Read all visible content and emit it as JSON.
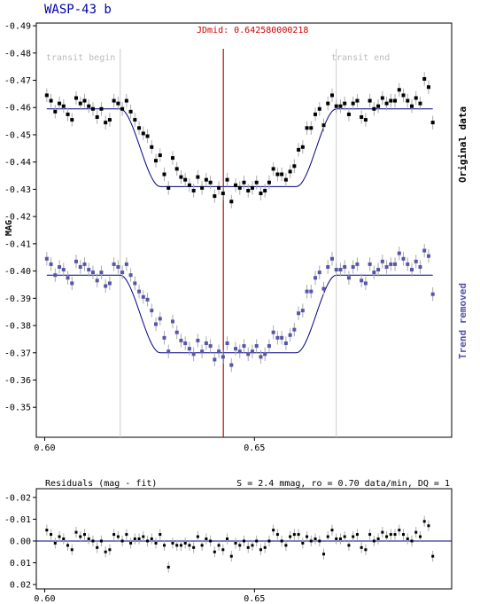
{
  "title": "WASP-43 b",
  "jdmid_label": "JDmid: 0.642580000218",
  "transit_begin_label": "transit begin",
  "transit_end_label": "transit end",
  "ylabel": "MAG",
  "right_label_original": "Original data",
  "right_label_trend": "Trend removed",
  "residuals_title": "Residuals (mag - fit)",
  "residuals_stats": "S = 2.4 mmag, ro = 0.70 data/min, DQ = 1",
  "colors": {
    "original": "#000000",
    "trend": "#5555aa",
    "fit": "#000080",
    "jdmid": "#cc0000",
    "guide": "#cccccc",
    "errorbar": "#aaaaaa",
    "zero_line": "#000080"
  },
  "chart_data": [
    {
      "type": "scatter",
      "name": "light-curve",
      "xlim": [
        0.598,
        0.697
      ],
      "ylim": [
        -0.491,
        -0.339
      ],
      "y_reversed": true,
      "grid": false,
      "x_ticks": [
        "0.60",
        "0.65"
      ],
      "x_tick_values": [
        0.6,
        0.65
      ],
      "y_ticks": [
        "-0.49",
        "-0.48",
        "-0.47",
        "-0.46",
        "-0.45",
        "-0.44",
        "-0.43",
        "-0.42",
        "-0.41",
        "-0.40",
        "-0.39",
        "-0.38",
        "-0.37",
        "-0.36",
        "-0.35"
      ],
      "y_tick_values": [
        -0.49,
        -0.48,
        -0.47,
        -0.46,
        -0.45,
        -0.44,
        -0.43,
        -0.42,
        -0.41,
        -0.4,
        -0.39,
        -0.38,
        -0.37,
        -0.36,
        -0.35
      ],
      "transit_begin": 0.618,
      "transit_end": 0.6695,
      "jdmid": 0.64258,
      "depth": 0.0285,
      "errorbar": 0.0025,
      "series": [
        {
          "key": "original",
          "baseline": -0.4595,
          "x": [
            0.6005,
            0.6015,
            0.6025,
            0.6035,
            0.6045,
            0.6055,
            0.6065,
            0.6075,
            0.6085,
            0.6095,
            0.6105,
            0.6115,
            0.6125,
            0.6135,
            0.6145,
            0.6155,
            0.6165,
            0.6175,
            0.6185,
            0.6195,
            0.6205,
            0.6215,
            0.6225,
            0.6235,
            0.6245,
            0.6255,
            0.6265,
            0.6275,
            0.6285,
            0.6295,
            0.6305,
            0.6315,
            0.6325,
            0.6335,
            0.6345,
            0.6355,
            0.6365,
            0.6375,
            0.6385,
            0.6395,
            0.6405,
            0.6415,
            0.6425,
            0.6435,
            0.6445,
            0.6455,
            0.6465,
            0.6475,
            0.6485,
            0.6495,
            0.6505,
            0.6515,
            0.6525,
            0.6535,
            0.6545,
            0.6555,
            0.6565,
            0.6575,
            0.6585,
            0.6595,
            0.6605,
            0.6615,
            0.6625,
            0.6635,
            0.6645,
            0.6655,
            0.6665,
            0.6675,
            0.6685,
            0.6695,
            0.6705,
            0.6715,
            0.6725,
            0.6735,
            0.6745,
            0.6755,
            0.6765,
            0.6775,
            0.6785,
            0.6795,
            0.6805,
            0.6815,
            0.6825,
            0.6835,
            0.6845,
            0.6855,
            0.6865,
            0.6875,
            0.6885,
            0.6895,
            0.6905,
            0.6915,
            0.6925
          ],
          "y": [
            -0.4645,
            -0.4625,
            -0.4585,
            -0.4615,
            -0.4605,
            -0.4575,
            -0.4555,
            -0.4635,
            -0.4615,
            -0.4625,
            -0.4605,
            -0.4595,
            -0.4565,
            -0.4595,
            -0.4545,
            -0.4555,
            -0.4625,
            -0.4615,
            -0.4595,
            -0.4625,
            -0.4585,
            -0.4555,
            -0.4525,
            -0.4505,
            -0.4495,
            -0.4455,
            -0.4405,
            -0.4425,
            -0.4355,
            -0.4305,
            -0.4415,
            -0.4375,
            -0.4345,
            -0.4335,
            -0.4315,
            -0.4295,
            -0.4345,
            -0.4305,
            -0.4335,
            -0.4325,
            -0.4275,
            -0.4305,
            -0.4285,
            -0.4335,
            -0.4255,
            -0.4315,
            -0.4305,
            -0.4325,
            -0.4295,
            -0.4305,
            -0.4325,
            -0.4285,
            -0.4295,
            -0.4325,
            -0.4375,
            -0.4355,
            -0.4355,
            -0.4335,
            -0.4365,
            -0.4385,
            -0.4445,
            -0.4455,
            -0.4525,
            -0.4525,
            -0.4575,
            -0.4595,
            -0.4535,
            -0.4615,
            -0.4645,
            -0.4605,
            -0.4605,
            -0.4615,
            -0.4575,
            -0.4615,
            -0.4625,
            -0.4565,
            -0.4555,
            -0.4625,
            -0.4595,
            -0.4605,
            -0.4635,
            -0.4615,
            -0.4625,
            -0.4625,
            -0.4665,
            -0.4645,
            -0.4625,
            -0.4605,
            -0.4635,
            -0.4615,
            -0.4705,
            -0.4675,
            -0.4545
          ]
        },
        {
          "key": "trend",
          "baseline": -0.3985,
          "x": [
            0.6005,
            0.6015,
            0.6025,
            0.6035,
            0.6045,
            0.6055,
            0.6065,
            0.6075,
            0.6085,
            0.6095,
            0.6105,
            0.6115,
            0.6125,
            0.6135,
            0.6145,
            0.6155,
            0.6165,
            0.6175,
            0.6185,
            0.6195,
            0.6205,
            0.6215,
            0.6225,
            0.6235,
            0.6245,
            0.6255,
            0.6265,
            0.6275,
            0.6285,
            0.6295,
            0.6305,
            0.6315,
            0.6325,
            0.6335,
            0.6345,
            0.6355,
            0.6365,
            0.6375,
            0.6385,
            0.6395,
            0.6405,
            0.6415,
            0.6425,
            0.6435,
            0.6445,
            0.6455,
            0.6465,
            0.6475,
            0.6485,
            0.6495,
            0.6505,
            0.6515,
            0.6525,
            0.6535,
            0.6545,
            0.6555,
            0.6565,
            0.6575,
            0.6585,
            0.6595,
            0.6605,
            0.6615,
            0.6625,
            0.6635,
            0.6645,
            0.6655,
            0.6665,
            0.6675,
            0.6685,
            0.6695,
            0.6705,
            0.6715,
            0.6725,
            0.6735,
            0.6745,
            0.6755,
            0.6765,
            0.6775,
            0.6785,
            0.6795,
            0.6805,
            0.6815,
            0.6825,
            0.6835,
            0.6845,
            0.6855,
            0.6865,
            0.6875,
            0.6885,
            0.6895,
            0.6905,
            0.6915,
            0.6925
          ],
          "y": [
            -0.4045,
            -0.4025,
            -0.3985,
            -0.4015,
            -0.4005,
            -0.3975,
            -0.3955,
            -0.4035,
            -0.4015,
            -0.4025,
            -0.4005,
            -0.3995,
            -0.3965,
            -0.3995,
            -0.3945,
            -0.3955,
            -0.4025,
            -0.4015,
            -0.3995,
            -0.4025,
            -0.3985,
            -0.3955,
            -0.3925,
            -0.3905,
            -0.3895,
            -0.3855,
            -0.3805,
            -0.3825,
            -0.3755,
            -0.3705,
            -0.3815,
            -0.3775,
            -0.3745,
            -0.3735,
            -0.3715,
            -0.3695,
            -0.3745,
            -0.3705,
            -0.3735,
            -0.3725,
            -0.3675,
            -0.3705,
            -0.3685,
            -0.3735,
            -0.3655,
            -0.3715,
            -0.3705,
            -0.3725,
            -0.3695,
            -0.3705,
            -0.3725,
            -0.3685,
            -0.3695,
            -0.3725,
            -0.3775,
            -0.3755,
            -0.3755,
            -0.3735,
            -0.3765,
            -0.3785,
            -0.3845,
            -0.3855,
            -0.3925,
            -0.3925,
            -0.3975,
            -0.3995,
            -0.3935,
            -0.4015,
            -0.4045,
            -0.4005,
            -0.4005,
            -0.4015,
            -0.3975,
            -0.4015,
            -0.4025,
            -0.3965,
            -0.3955,
            -0.4025,
            -0.3995,
            -0.4005,
            -0.4035,
            -0.4015,
            -0.4025,
            -0.4025,
            -0.4065,
            -0.4045,
            -0.4025,
            -0.4005,
            -0.4035,
            -0.4015,
            -0.4075,
            -0.4055,
            -0.3915
          ]
        }
      ]
    },
    {
      "type": "scatter",
      "name": "residuals",
      "title": "Residuals (mag - fit)",
      "xlim": [
        0.598,
        0.697
      ],
      "ylim": [
        -0.024,
        0.022
      ],
      "y_reversed": true,
      "x_ticks": [
        "0.60",
        "0.65"
      ],
      "x_tick_values": [
        0.6,
        0.65
      ],
      "y_ticks": [
        "-0.02",
        "-0.01",
        "0.00",
        "0.01",
        "0.02"
      ],
      "y_tick_values": [
        -0.02,
        -0.01,
        0.0,
        0.01,
        0.02
      ],
      "errorbar": 0.0025,
      "x": [
        0.6005,
        0.6015,
        0.6025,
        0.6035,
        0.6045,
        0.6055,
        0.6065,
        0.6075,
        0.6085,
        0.6095,
        0.6105,
        0.6115,
        0.6125,
        0.6135,
        0.6145,
        0.6155,
        0.6165,
        0.6175,
        0.6185,
        0.6195,
        0.6205,
        0.6215,
        0.6225,
        0.6235,
        0.6245,
        0.6255,
        0.6265,
        0.6275,
        0.6285,
        0.6295,
        0.6305,
        0.6315,
        0.6325,
        0.6335,
        0.6345,
        0.6355,
        0.6365,
        0.6375,
        0.6385,
        0.6395,
        0.6405,
        0.6415,
        0.6425,
        0.6435,
        0.6445,
        0.6455,
        0.6465,
        0.6475,
        0.6485,
        0.6495,
        0.6505,
        0.6515,
        0.6525,
        0.6535,
        0.6545,
        0.6555,
        0.6565,
        0.6575,
        0.6585,
        0.6595,
        0.6605,
        0.6615,
        0.6625,
        0.6635,
        0.6645,
        0.6655,
        0.6665,
        0.6675,
        0.6685,
        0.6695,
        0.6705,
        0.6715,
        0.6725,
        0.6735,
        0.6745,
        0.6755,
        0.6765,
        0.6775,
        0.6785,
        0.6795,
        0.6805,
        0.6815,
        0.6825,
        0.6835,
        0.6845,
        0.6855,
        0.6865,
        0.6875,
        0.6885,
        0.6895,
        0.6905,
        0.6915,
        0.6925
      ],
      "y": [
        -0.005,
        -0.003,
        0.001,
        -0.002,
        -0.001,
        0.002,
        0.004,
        -0.004,
        -0.002,
        -0.003,
        -0.001,
        0.0,
        0.003,
        0.0,
        0.005,
        0.004,
        -0.003,
        -0.002,
        0.0,
        -0.003,
        0.001,
        -0.001,
        -0.001,
        -0.002,
        0.0,
        -0.001,
        0.001,
        -0.003,
        0.002,
        0.012,
        0.001,
        0.002,
        0.002,
        0.001,
        0.002,
        0.003,
        -0.002,
        0.002,
        -0.001,
        0.0,
        0.005,
        0.002,
        0.004,
        -0.001,
        0.007,
        0.001,
        0.002,
        0.0,
        0.003,
        0.002,
        0.0,
        0.004,
        0.003,
        0.0,
        -0.005,
        -0.003,
        0.0,
        0.002,
        -0.002,
        -0.003,
        -0.003,
        0.001,
        -0.002,
        0.0,
        -0.001,
        0.0,
        0.006,
        -0.002,
        -0.005,
        -0.001,
        -0.001,
        -0.002,
        0.002,
        -0.002,
        -0.003,
        0.003,
        0.004,
        -0.003,
        0.0,
        -0.001,
        -0.004,
        -0.002,
        -0.003,
        -0.003,
        -0.005,
        -0.003,
        -0.001,
        0.0,
        -0.004,
        -0.002,
        -0.009,
        -0.007,
        0.007
      ]
    }
  ]
}
